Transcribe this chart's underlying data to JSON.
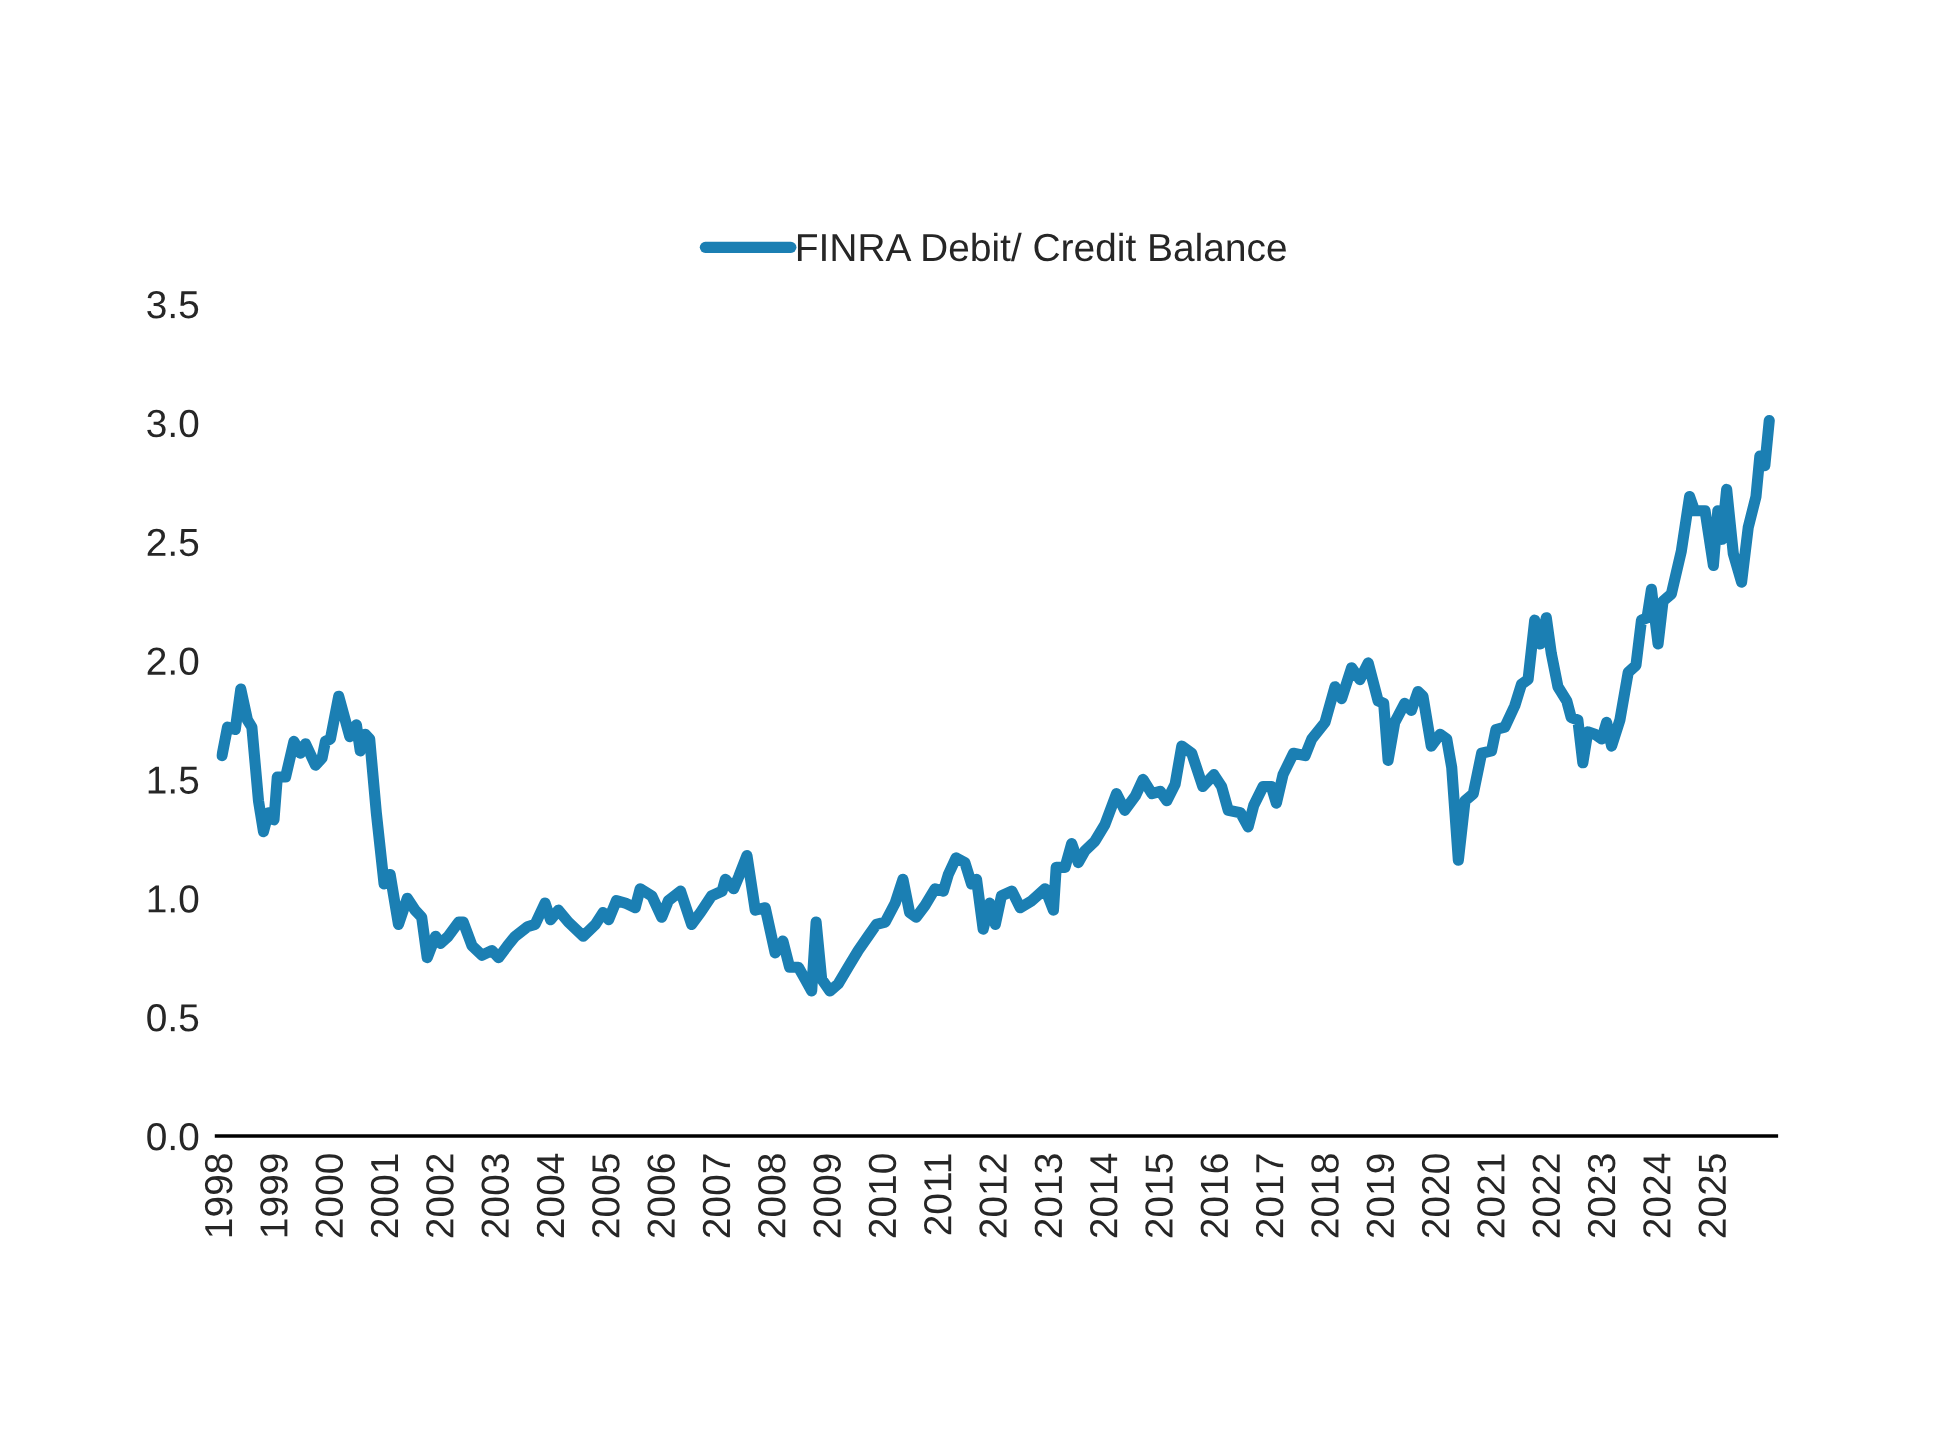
{
  "chart_data": {
    "type": "line",
    "xlim": [
      1997.9,
      2026.1
    ],
    "ylim": [
      0,
      3.5
    ],
    "xticks": [
      1998,
      1999,
      2000,
      2001,
      2002,
      2003,
      2004,
      2005,
      2006,
      2007,
      2008,
      2009,
      2010,
      2011,
      2012,
      2013,
      2014,
      2015,
      2016,
      2017,
      2018,
      2019,
      2020,
      2021,
      2022,
      2023,
      2024,
      2025
    ],
    "yticks": [
      {
        "value": 0,
        "label": "0.0"
      },
      {
        "value": 0.5,
        "label": "0.5"
      },
      {
        "value": 1,
        "label": "1.0"
      },
      {
        "value": 1.5,
        "label": "1.5"
      },
      {
        "value": 2,
        "label": "2.0"
      },
      {
        "value": 2.5,
        "label": "2.5"
      },
      {
        "value": 3,
        "label": "3.0"
      },
      {
        "value": 3.5,
        "label": "3.5"
      }
    ],
    "grid": false,
    "legend": "top",
    "marker": "none",
    "line_style": "solid",
    "series": [
      {
        "name": "FINRA Debit/ Credit Balance",
        "color": "#1b7fb3",
        "x": [
          1998.0,
          1998.1,
          1998.24,
          1998.34,
          1998.46,
          1998.54,
          1998.66,
          1998.75,
          1998.84,
          1998.94,
          1999.0,
          1999.15,
          1999.3,
          1999.42,
          1999.51,
          1999.69,
          1999.81,
          1999.87,
          1999.96,
          2000.11,
          2000.31,
          2000.43,
          2000.5,
          2000.59,
          2000.67,
          2000.79,
          2000.93,
          2001.04,
          2001.19,
          2001.35,
          2001.49,
          2001.61,
          2001.71,
          2001.86,
          2001.95,
          2002.09,
          2002.28,
          2002.36,
          2002.52,
          2002.7,
          2002.88,
          2003.0,
          2003.16,
          2003.3,
          2003.52,
          2003.66,
          2003.84,
          2003.94,
          2004.08,
          2004.26,
          2004.53,
          2004.75,
          2004.89,
          2004.99,
          2005.13,
          2005.29,
          2005.47,
          2005.56,
          2005.77,
          2005.95,
          2006.07,
          2006.29,
          2006.49,
          2006.65,
          2006.85,
          2007.04,
          2007.1,
          2007.25,
          2007.34,
          2007.49,
          2007.64,
          2007.82,
          2008.0,
          2008.14,
          2008.26,
          2008.42,
          2008.54,
          2008.66,
          2008.74,
          2008.84,
          2008.99,
          2009.14,
          2009.32,
          2009.5,
          2009.68,
          2009.83,
          2009.99,
          2010.17,
          2010.31,
          2010.43,
          2010.55,
          2010.71,
          2010.89,
          2011.04,
          2011.13,
          2011.27,
          2011.43,
          2011.55,
          2011.64,
          2011.76,
          2011.88,
          2011.98,
          2012.09,
          2012.28,
          2012.43,
          2012.64,
          2012.88,
          2013.03,
          2013.08,
          2013.24,
          2013.36,
          2013.48,
          2013.6,
          2013.78,
          2013.96,
          2014.17,
          2014.32,
          2014.51,
          2014.65,
          2014.81,
          2014.96,
          2015.08,
          2015.23,
          2015.35,
          2015.53,
          2015.73,
          2015.93,
          2016.07,
          2016.19,
          2016.41,
          2016.55,
          2016.65,
          2016.82,
          2016.97,
          2017.06,
          2017.18,
          2017.37,
          2017.58,
          2017.7,
          2017.94,
          2018.12,
          2018.24,
          2018.42,
          2018.57,
          2018.72,
          2018.9,
          2019.0,
          2019.08,
          2019.2,
          2019.38,
          2019.5,
          2019.62,
          2019.71,
          2019.86,
          2020.02,
          2020.14,
          2020.23,
          2020.35,
          2020.47,
          2020.62,
          2020.77,
          2020.95,
          2021.03,
          2021.19,
          2021.37,
          2021.49,
          2021.61,
          2021.73,
          2021.83,
          2021.94,
          2022.03,
          2022.15,
          2022.31,
          2022.39,
          2022.51,
          2022.6,
          2022.69,
          2022.82,
          2022.94,
          2023.03,
          2023.12,
          2023.27,
          2023.42,
          2023.56,
          2023.66,
          2023.76,
          2023.84,
          2023.96,
          2024.05,
          2024.2,
          2024.38,
          2024.53,
          2024.62,
          2024.81,
          2024.96,
          2025.04,
          2025.11,
          2025.2,
          2025.32,
          2025.47,
          2025.59,
          2025.73,
          2025.8,
          2025.89,
          2025.97
        ],
        "values": [
          1.6,
          1.72,
          1.71,
          1.88,
          1.75,
          1.72,
          1.41,
          1.28,
          1.36,
          1.33,
          1.51,
          1.51,
          1.66,
          1.61,
          1.65,
          1.56,
          1.59,
          1.66,
          1.67,
          1.85,
          1.68,
          1.73,
          1.62,
          1.69,
          1.67,
          1.36,
          1.06,
          1.1,
          0.89,
          1.0,
          0.95,
          0.92,
          0.75,
          0.84,
          0.81,
          0.84,
          0.9,
          0.9,
          0.8,
          0.76,
          0.78,
          0.75,
          0.8,
          0.84,
          0.88,
          0.89,
          0.98,
          0.91,
          0.95,
          0.9,
          0.84,
          0.89,
          0.94,
          0.91,
          0.99,
          0.98,
          0.96,
          1.04,
          1.01,
          0.92,
          0.99,
          1.03,
          0.89,
          0.94,
          1.01,
          1.03,
          1.08,
          1.04,
          1.09,
          1.18,
          0.95,
          0.96,
          0.77,
          0.82,
          0.71,
          0.71,
          0.66,
          0.61,
          0.9,
          0.66,
          0.61,
          0.64,
          0.71,
          0.78,
          0.84,
          0.89,
          0.9,
          0.98,
          1.08,
          0.94,
          0.92,
          0.97,
          1.04,
          1.03,
          1.1,
          1.17,
          1.15,
          1.06,
          1.08,
          0.87,
          0.98,
          0.89,
          1.01,
          1.03,
          0.96,
          0.99,
          1.04,
          0.95,
          1.13,
          1.13,
          1.23,
          1.15,
          1.2,
          1.24,
          1.31,
          1.44,
          1.37,
          1.43,
          1.5,
          1.44,
          1.45,
          1.41,
          1.48,
          1.64,
          1.61,
          1.47,
          1.52,
          1.47,
          1.37,
          1.36,
          1.3,
          1.39,
          1.47,
          1.47,
          1.4,
          1.52,
          1.61,
          1.6,
          1.67,
          1.74,
          1.89,
          1.84,
          1.97,
          1.92,
          1.99,
          1.83,
          1.82,
          1.58,
          1.74,
          1.82,
          1.79,
          1.87,
          1.85,
          1.64,
          1.69,
          1.67,
          1.55,
          1.16,
          1.41,
          1.44,
          1.61,
          1.62,
          1.71,
          1.72,
          1.81,
          1.9,
          1.92,
          2.17,
          2.07,
          2.18,
          2.03,
          1.89,
          1.83,
          1.76,
          1.75,
          1.57,
          1.7,
          1.69,
          1.67,
          1.74,
          1.64,
          1.75,
          1.95,
          1.98,
          2.17,
          2.18,
          2.3,
          2.07,
          2.25,
          2.28,
          2.46,
          2.69,
          2.63,
          2.63,
          2.4,
          2.63,
          2.51,
          2.72,
          2.45,
          2.33,
          2.56,
          2.69,
          2.86,
          2.82,
          3.01
        ]
      }
    ]
  }
}
